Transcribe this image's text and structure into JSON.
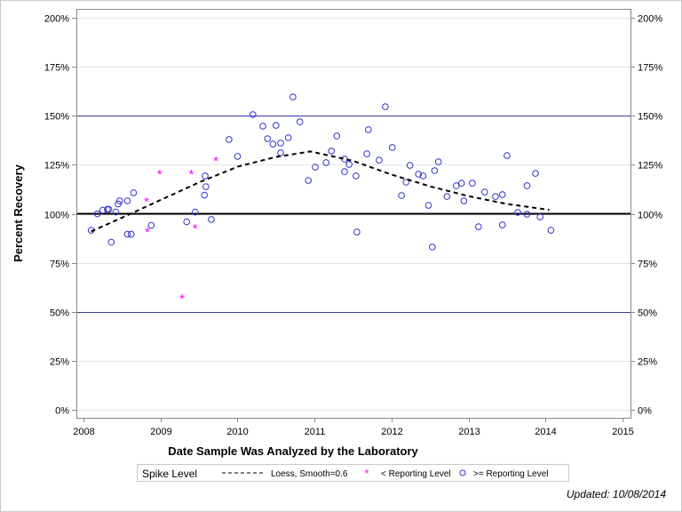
{
  "chart_data": {
    "type": "scatter",
    "xlabel": "Date Sample Was Analyzed by the Laboratory",
    "ylabel": "Percent Recovery",
    "xlim": [
      2008,
      2015
    ],
    "ylim": [
      0,
      200
    ],
    "xticks": [
      "2008",
      "2009",
      "2010",
      "2011",
      "2012",
      "2013",
      "2014",
      "2015"
    ],
    "yticks": [
      "0%",
      "25%",
      "50%",
      "75%",
      "100%",
      "125%",
      "150%",
      "175%",
      "200%"
    ],
    "reference_lines": {
      "spike_level": 100,
      "limits": [
        50,
        150
      ]
    },
    "grid": true,
    "legend_position": "bottom",
    "legend": {
      "spike_level": "Spike Level",
      "loess": "Loess, Smooth=0.6",
      "below": "< Reporting Level",
      "above": ">= Reporting Level"
    },
    "colors": {
      "above": "#3333cc",
      "below": "#ff00ff",
      "loess": "#000000",
      "limit": "#3a3aa8"
    },
    "series": [
      {
        "name": ">= Reporting Level",
        "marker": "circle",
        "points": [
          [
            2008.1,
            91.6
          ],
          [
            2008.18,
            100.0
          ],
          [
            2008.25,
            101.8
          ],
          [
            2008.31,
            102.3
          ],
          [
            2008.33,
            102.3
          ],
          [
            2008.36,
            85.5
          ],
          [
            2008.42,
            100.9
          ],
          [
            2008.45,
            105.0
          ],
          [
            2008.47,
            106.6
          ],
          [
            2008.57,
            89.6
          ],
          [
            2008.62,
            89.6
          ],
          [
            2008.57,
            106.6
          ],
          [
            2008.65,
            110.7
          ],
          [
            2008.88,
            94.1
          ],
          [
            2009.34,
            95.9
          ],
          [
            2009.45,
            100.9
          ],
          [
            2009.57,
            109.5
          ],
          [
            2009.66,
            97.1
          ],
          [
            2009.58,
            119.3
          ],
          [
            2009.59,
            113.8
          ],
          [
            2009.89,
            137.9
          ],
          [
            2010.0,
            129.3
          ],
          [
            2010.2,
            150.6
          ],
          [
            2010.33,
            144.7
          ],
          [
            2010.39,
            138.3
          ],
          [
            2010.46,
            135.6
          ],
          [
            2010.5,
            145.1
          ],
          [
            2010.56,
            136.1
          ],
          [
            2010.56,
            131.1
          ],
          [
            2010.66,
            138.8
          ],
          [
            2010.72,
            159.6
          ],
          [
            2010.81,
            146.9
          ],
          [
            2010.92,
            117.0
          ],
          [
            2011.01,
            123.8
          ],
          [
            2011.15,
            126.1
          ],
          [
            2011.22,
            132.0
          ],
          [
            2011.29,
            139.7
          ],
          [
            2011.39,
            121.5
          ],
          [
            2011.39,
            127.9
          ],
          [
            2011.45,
            125.2
          ],
          [
            2011.54,
            119.3
          ],
          [
            2011.55,
            90.7
          ],
          [
            2011.68,
            130.6
          ],
          [
            2011.7,
            142.9
          ],
          [
            2011.84,
            127.4
          ],
          [
            2011.92,
            154.6
          ],
          [
            2012.01,
            133.8
          ],
          [
            2012.13,
            109.3
          ],
          [
            2012.19,
            116.1
          ],
          [
            2012.24,
            124.7
          ],
          [
            2012.35,
            120.2
          ],
          [
            2012.41,
            119.3
          ],
          [
            2012.48,
            104.3
          ],
          [
            2012.53,
            83.0
          ],
          [
            2012.56,
            122.0
          ],
          [
            2012.61,
            126.5
          ],
          [
            2012.72,
            108.8
          ],
          [
            2012.84,
            114.3
          ],
          [
            2012.91,
            115.6
          ],
          [
            2012.94,
            106.6
          ],
          [
            2013.05,
            115.6
          ],
          [
            2013.13,
            93.4
          ],
          [
            2013.21,
            111.1
          ],
          [
            2013.35,
            108.8
          ],
          [
            2013.44,
            109.8
          ],
          [
            2013.44,
            94.3
          ],
          [
            2013.5,
            129.7
          ],
          [
            2013.64,
            100.7
          ],
          [
            2013.76,
            114.3
          ],
          [
            2013.76,
            99.8
          ],
          [
            2013.87,
            120.6
          ],
          [
            2013.93,
            98.4
          ],
          [
            2014.07,
            91.6
          ]
        ]
      },
      {
        "name": "< Reporting Level",
        "marker": "star",
        "points": [
          [
            2008.82,
            106.6
          ],
          [
            2008.99,
            120.6
          ],
          [
            2009.4,
            120.6
          ],
          [
            2009.28,
            57.1
          ],
          [
            2008.83,
            91.2
          ],
          [
            2009.45,
            93.0
          ],
          [
            2009.72,
            127.4
          ]
        ]
      },
      {
        "name": "Loess, Smooth=0.6",
        "marker": "dashed-line",
        "points": [
          [
            2008.1,
            91
          ],
          [
            2008.5,
            98
          ],
          [
            2009.0,
            107
          ],
          [
            2009.5,
            116
          ],
          [
            2010.0,
            124
          ],
          [
            2010.5,
            129
          ],
          [
            2010.95,
            131.8
          ],
          [
            2011.5,
            127
          ],
          [
            2012.0,
            120
          ],
          [
            2012.5,
            114
          ],
          [
            2013.0,
            109
          ],
          [
            2013.5,
            105
          ],
          [
            2014.05,
            102
          ]
        ]
      }
    ]
  },
  "footer": {
    "updated": "Updated: 10/08/2014"
  }
}
